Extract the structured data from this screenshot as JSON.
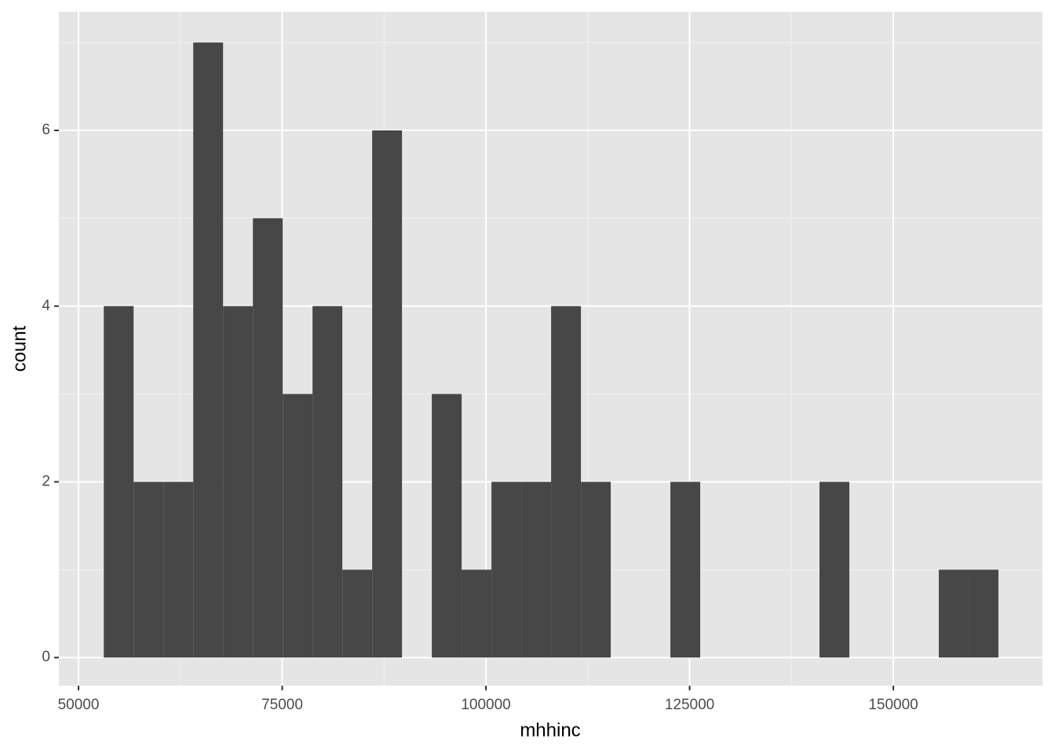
{
  "chart_data": {
    "type": "histogram",
    "x_label": "mhhinc",
    "y_label": "count",
    "bins": [
      53100,
      56760,
      60420,
      64080,
      67740,
      71400,
      75060,
      78720,
      82380,
      86040,
      89700,
      93360,
      97020,
      100680,
      104340,
      108000,
      111660,
      115320,
      118980,
      122640,
      126300,
      129960,
      133620,
      137280,
      140940,
      144600,
      148260,
      151920,
      155580,
      159240,
      162900
    ],
    "values": [
      4,
      2,
      2,
      7,
      4,
      5,
      3,
      4,
      1,
      6,
      0,
      3,
      1,
      2,
      2,
      4,
      2,
      0,
      0,
      2,
      0,
      0,
      0,
      0,
      2,
      0,
      0,
      0,
      1,
      1
    ],
    "color": "#474747",
    "xlim": [
      47590,
      168300
    ],
    "ylim": [
      -0.32,
      7.35
    ],
    "xticks": [
      50000,
      75000,
      100000,
      125000,
      150000
    ],
    "yticks": [
      0,
      2,
      4,
      6
    ],
    "grid": true
  }
}
